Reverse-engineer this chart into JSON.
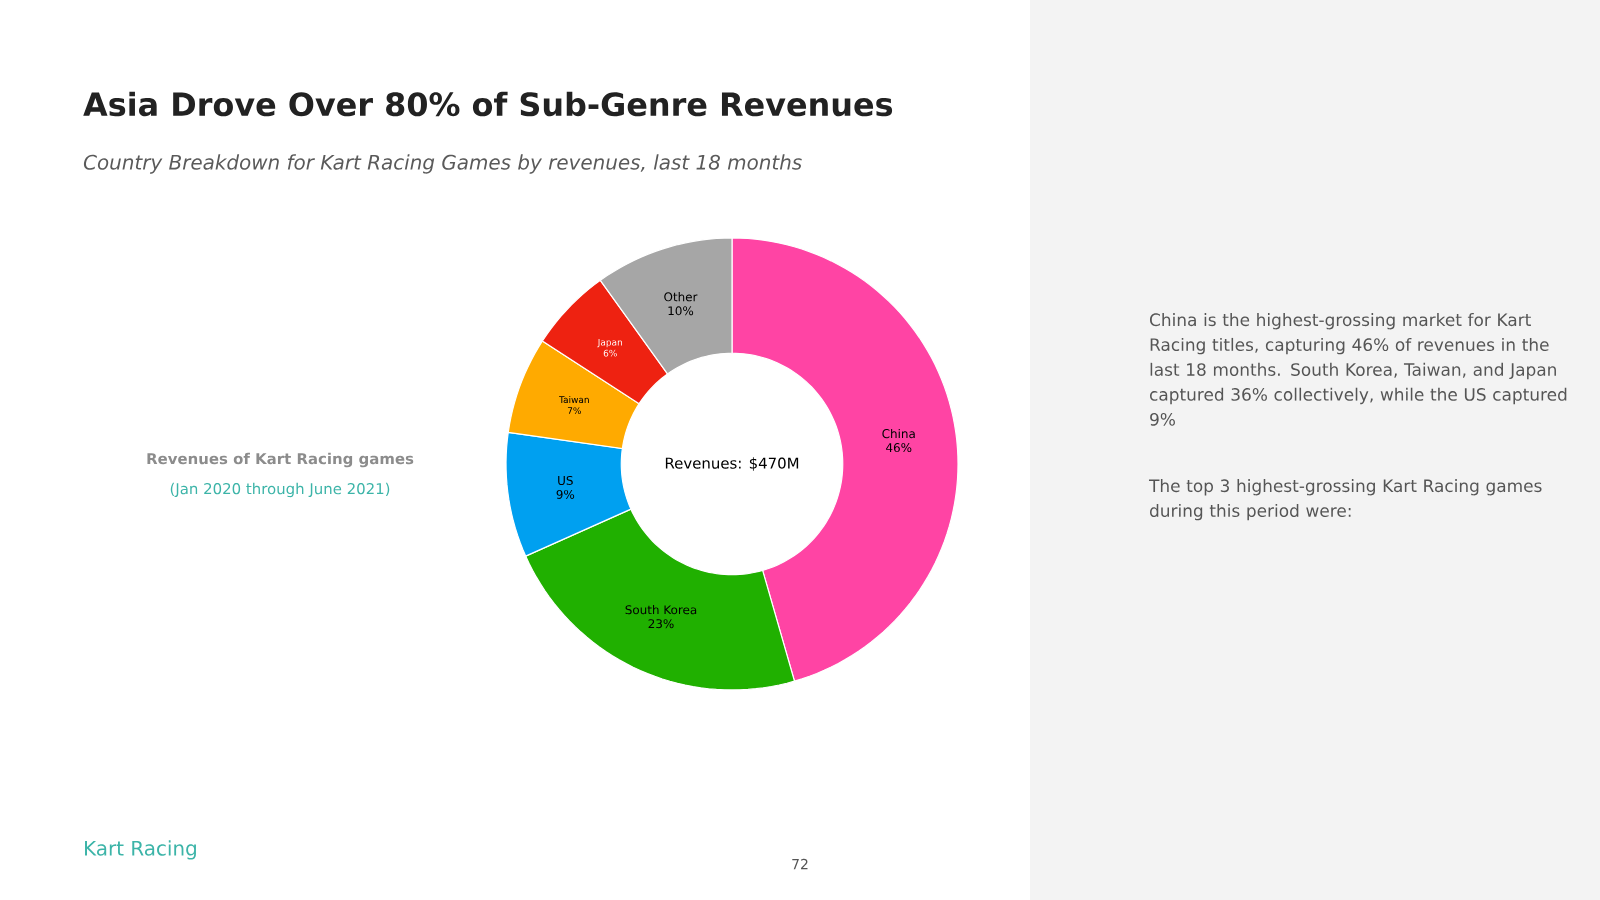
{
  "chart_data": {
    "type": "donut",
    "title": "Asia Drove Over 80% of Sub-Genre Revenues",
    "subtitle": "Country Breakdown for Kart Racing Games by revenues, last 18 months",
    "categories": [
      "China",
      "South Korea",
      "US",
      "Taiwan",
      "Japan",
      "Other"
    ],
    "values": [
      46,
      23,
      9,
      7,
      6,
      10
    ],
    "value_labels": [
      "46%",
      "23%",
      "9%",
      "7%",
      "6%",
      "10%"
    ],
    "colors": [
      "#ff44a4",
      "#20b000",
      "#00a0f0",
      "#ffaa00",
      "#ee2211",
      "#a6a6a6"
    ],
    "annotations": [
      "Revenues of Kart Racing games",
      "(Jan 2020 through June 2021)",
      "Revenues: $470M",
      "China is the highest-grossing market for Kart Racing titles, capturing 46% of revenues in the last 18 months. South Korea, Taiwan, and Japan captured 36% collectively, while the US captured 9%",
      "The top 3 highest-grossing Kart Racing games during this period were:",
      "Kart Racing",
      "72"
    ]
  }
}
